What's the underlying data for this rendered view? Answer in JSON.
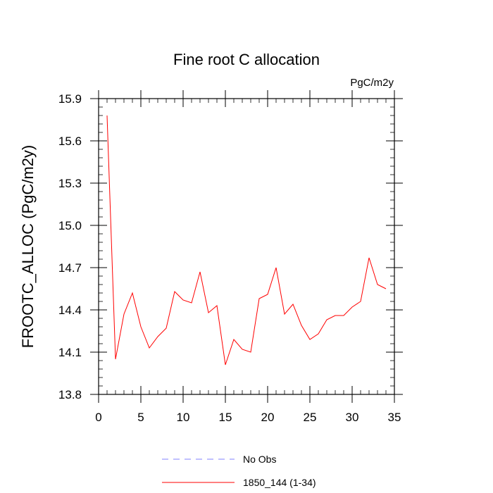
{
  "chart_data": {
    "type": "line",
    "title": "Fine root C allocation",
    "units_label": "PgC/m2y",
    "ylabel": "FROOTC_ALLOC  (PgC/m2y)",
    "xlabel": "",
    "xlim": [
      0,
      35
    ],
    "ylim": [
      13.8,
      15.9
    ],
    "x_ticks": [
      0,
      5,
      10,
      15,
      20,
      25,
      30,
      35
    ],
    "y_ticks": [
      13.8,
      14.1,
      14.4,
      14.7,
      15.0,
      15.3,
      15.6,
      15.9
    ],
    "x_tick_labels": [
      "0",
      "5",
      "10",
      "15",
      "20",
      "25",
      "30",
      "35"
    ],
    "y_tick_labels": [
      "13.8",
      "14.1",
      "14.4",
      "14.7",
      "15.0",
      "15.3",
      "15.6",
      "15.9"
    ],
    "grid": false,
    "legend_position": "bottom",
    "series": [
      {
        "name": "No Obs",
        "color": "#8080ff",
        "style": "dashed",
        "x": [],
        "y": []
      },
      {
        "name": "1850_144 (1-34)",
        "color": "#ff0000",
        "style": "solid",
        "x": [
          1,
          2,
          3,
          4,
          5,
          6,
          7,
          8,
          9,
          10,
          11,
          12,
          13,
          14,
          15,
          16,
          17,
          18,
          19,
          20,
          21,
          22,
          23,
          24,
          25,
          26,
          27,
          28,
          29,
          30,
          31,
          32,
          33,
          34
        ],
        "y": [
          15.78,
          14.05,
          14.37,
          14.52,
          14.28,
          14.13,
          14.21,
          14.27,
          14.53,
          14.47,
          14.45,
          14.67,
          14.38,
          14.43,
          14.01,
          14.19,
          14.12,
          14.1,
          14.48,
          14.51,
          14.7,
          14.37,
          14.44,
          14.29,
          14.19,
          14.23,
          14.33,
          14.36,
          14.36,
          14.42,
          14.46,
          14.77,
          14.58,
          14.55
        ]
      }
    ]
  }
}
